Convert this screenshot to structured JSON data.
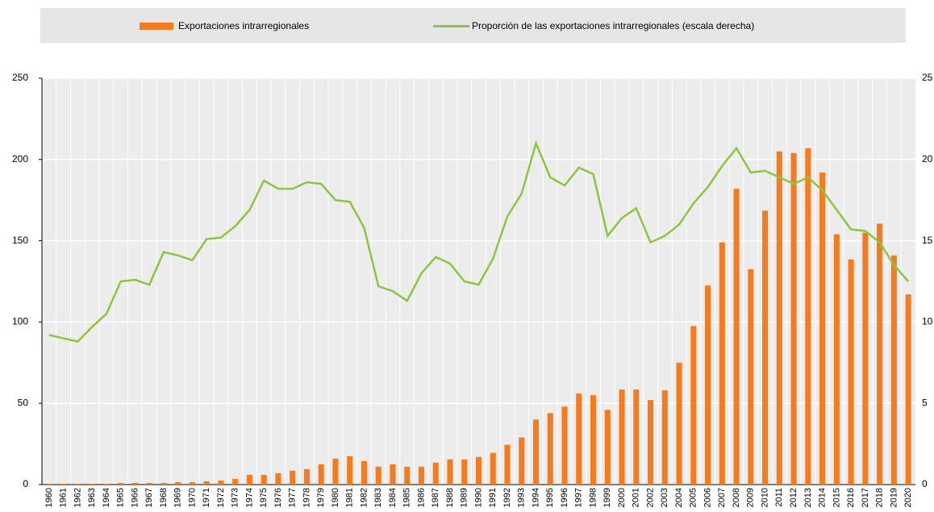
{
  "chart_data": {
    "type": "bar",
    "categories": [
      "1960",
      "1961",
      "1962",
      "1963",
      "1964",
      "1965",
      "1966",
      "1967",
      "1968",
      "1969",
      "1970",
      "1971",
      "1972",
      "1973",
      "1974",
      "1975",
      "1976",
      "1977",
      "1978",
      "1979",
      "1980",
      "1981",
      "1982",
      "1983",
      "1984",
      "1985",
      "1986",
      "1987",
      "1988",
      "1989",
      "1990",
      "1991",
      "1992",
      "1993",
      "1994",
      "1995",
      "1996",
      "1997",
      "1998",
      "1999",
      "2000",
      "2001",
      "2002",
      "2003",
      "2004",
      "2005",
      "2006",
      "2007",
      "2008",
      "2009",
      "2010",
      "2011",
      "2012",
      "2013",
      "2014",
      "2015",
      "2016",
      "2017",
      "2018",
      "2019",
      "2020"
    ],
    "series": [
      {
        "name": "Exportaciones intrarregionales",
        "type": "bar",
        "color": "#f47c20",
        "values": [
          0.5,
          0.5,
          0.5,
          0.5,
          0.5,
          1,
          1,
          1,
          1,
          1.5,
          1.5,
          2,
          2.5,
          3.5,
          6,
          6,
          7,
          8.5,
          9.5,
          12.5,
          16,
          17.5,
          14.5,
          11,
          12.5,
          11,
          11,
          13.5,
          15.5,
          15.5,
          17,
          19.5,
          24.5,
          29,
          40,
          44,
          48,
          56,
          55,
          46,
          58.5,
          58.5,
          52,
          58,
          75,
          97.5,
          122.5,
          149,
          182,
          132.5,
          168.5,
          205,
          204,
          207,
          192,
          154,
          138.5,
          155,
          160.5,
          141,
          117
        ]
      },
      {
        "name": "Proporción de las exportaciones intrarregionales (escala derecha)",
        "type": "line",
        "axis": "y2",
        "color": "#8cc63f",
        "values": [
          9.2,
          9.0,
          8.8,
          9.7,
          10.5,
          12.5,
          12.6,
          12.3,
          14.3,
          14.1,
          13.8,
          15.1,
          15.2,
          15.9,
          16.9,
          18.7,
          18.2,
          18.2,
          18.6,
          18.5,
          17.5,
          17.4,
          15.8,
          12.2,
          11.9,
          11.3,
          13.0,
          14.0,
          13.6,
          12.5,
          12.3,
          13.9,
          16.5,
          17.9,
          21.0,
          18.9,
          18.4,
          19.5,
          19.1,
          15.3,
          16.4,
          17.0,
          14.9,
          15.3,
          16.0,
          17.3,
          18.3,
          19.6,
          20.7,
          19.2,
          19.3,
          18.9,
          18.5,
          18.9,
          18.1,
          16.9,
          15.7,
          15.6,
          14.9,
          13.5,
          12.5
        ]
      }
    ],
    "ylim": [
      0,
      250
    ],
    "yticks": [
      0,
      50,
      100,
      150,
      200,
      250
    ],
    "y2lim": [
      0,
      25
    ],
    "y2ticks": [
      0,
      5,
      10,
      15,
      20,
      25
    ],
    "grid": true,
    "legend": "top"
  }
}
